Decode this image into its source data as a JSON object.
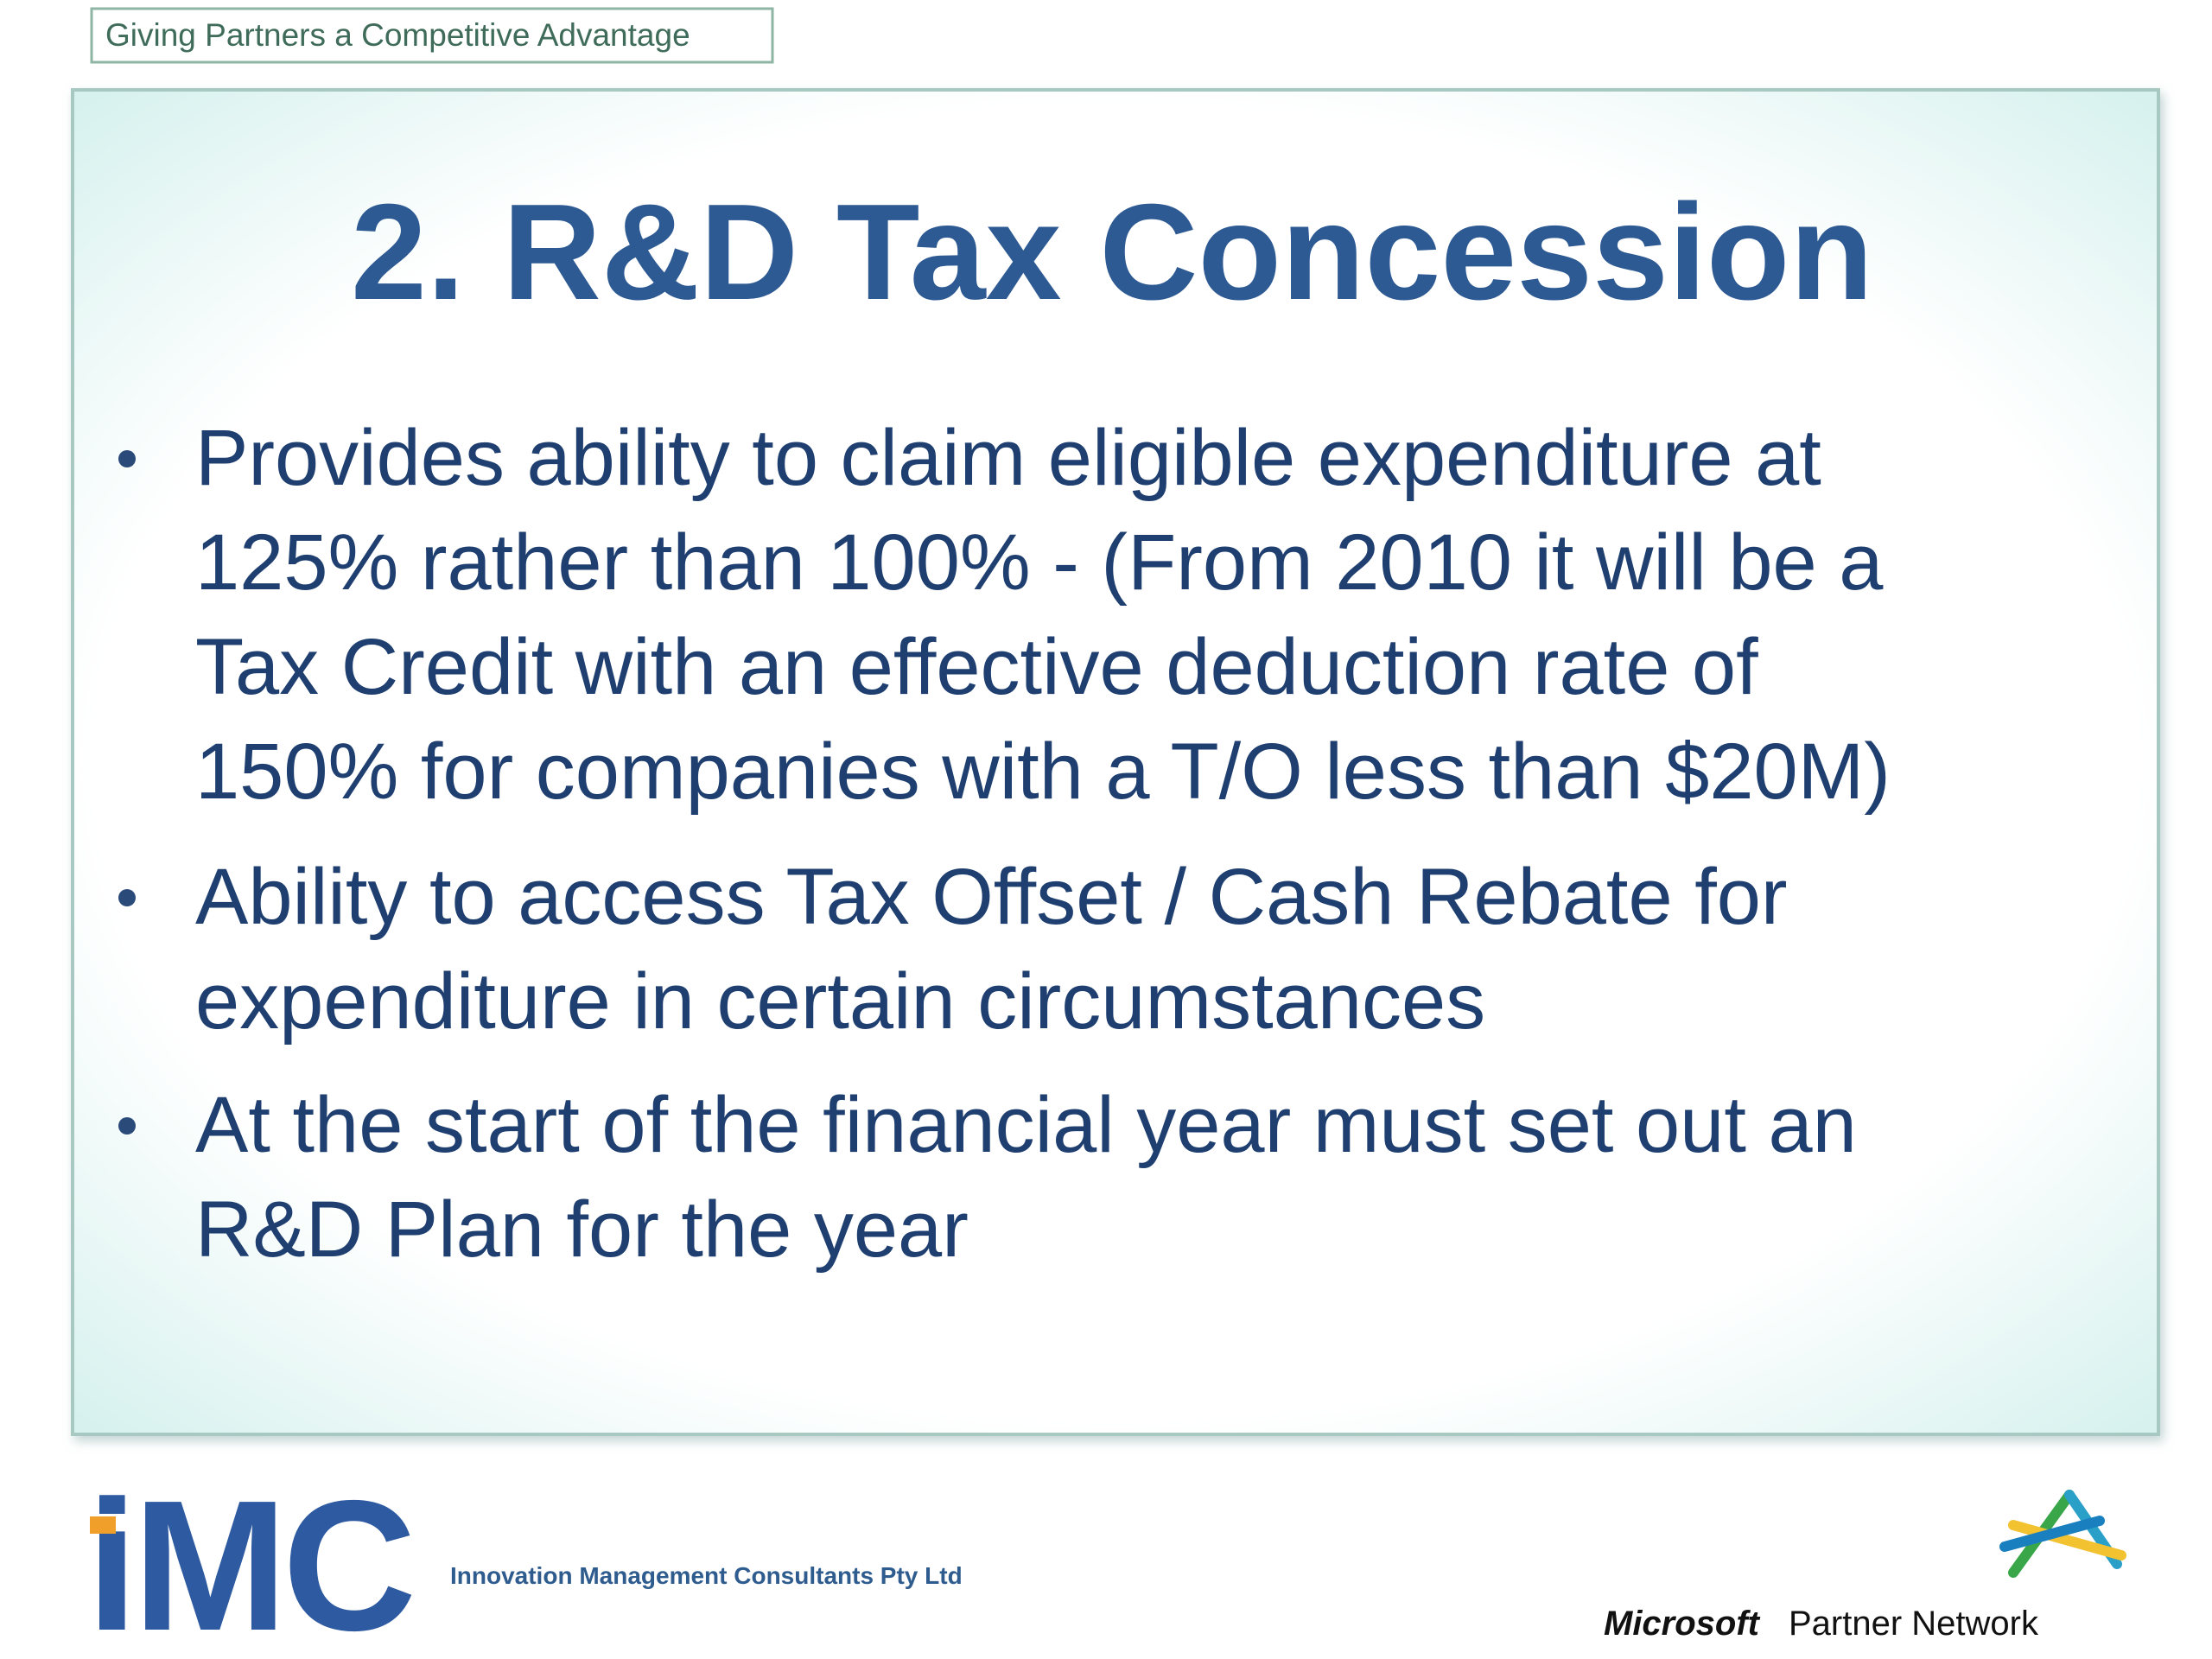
{
  "header": {
    "tagline": "Giving Partners a Competitive Advantage"
  },
  "slide": {
    "title": "2. R&D Tax Concession",
    "bullets": [
      {
        "lines": [
          "Provides ability to claim eligible expenditure at",
          "125% rather than 100% - (From 2010 it will be a",
          "Tax Credit with an effective deduction rate of",
          "150% for companies with a T/O less than $20M)"
        ]
      },
      {
        "lines": [
          "Ability to access Tax Offset / Cash Rebate for",
          "expenditure in certain circumstances"
        ]
      },
      {
        "lines": [
          "At the start of the financial year must set out an",
          "R&D Plan for the year"
        ]
      }
    ]
  },
  "footer": {
    "logo": "iMC",
    "company": "Innovation Management Consultants Pty Ltd",
    "partner_brand": "Microsoft",
    "partner_program": "Partner Network"
  }
}
